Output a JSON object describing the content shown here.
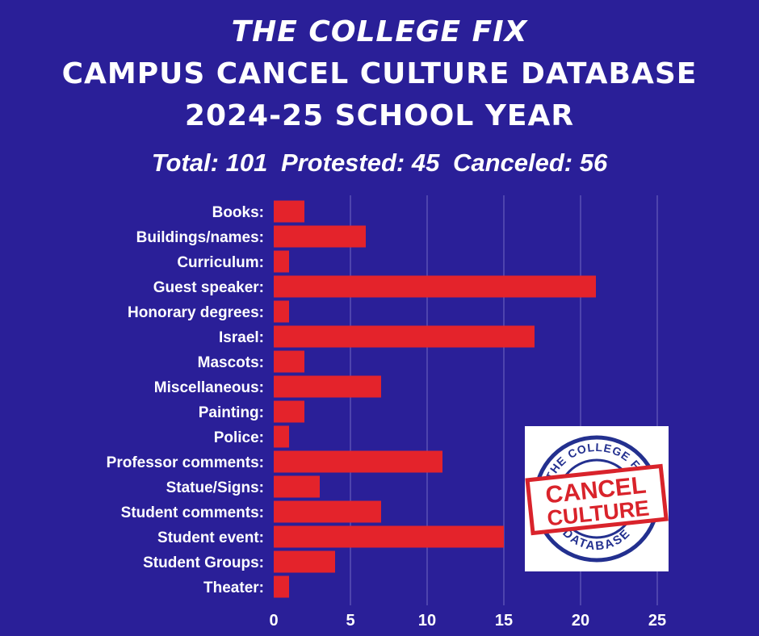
{
  "header": {
    "line1": "THE COLLEGE FIX",
    "line2": "CAMPUS CANCEL CULTURE DATABASE",
    "line3": "2024-25 SCHOOL YEAR"
  },
  "stats": {
    "total": "Total: 101",
    "protested": "Protested: 45",
    "canceled": "Canceled: 56"
  },
  "logo": {
    "arc_top": "THE COLLEGE FIX",
    "stamp_line1": "CANCEL",
    "stamp_line2": "CULTURE",
    "arc_bottom": "DATABASE"
  },
  "colors": {
    "background": "#2a1f98",
    "bar": "#e4232b",
    "grid": "#5a50b4",
    "logo_blue": "#23308f",
    "logo_red": "#d9232b"
  },
  "chart_data": {
    "type": "bar",
    "orientation": "horizontal",
    "categories": [
      "Books:",
      "Buildings/names:",
      "Curriculum:",
      "Guest speaker:",
      "Honorary degrees:",
      "Israel:",
      "Mascots:",
      "Miscellaneous:",
      "Painting:",
      "Police:",
      "Professor comments:",
      "Statue/Signs:",
      "Student comments:",
      "Student event:",
      "Student Groups:",
      "Theater:"
    ],
    "values": [
      2,
      6,
      1,
      21,
      1,
      17,
      2,
      7,
      2,
      1,
      11,
      3,
      7,
      15,
      4,
      1
    ],
    "xlim": [
      0,
      25
    ],
    "xticks": [
      0,
      5,
      10,
      15,
      20,
      25
    ],
    "grid": true,
    "xlabel": "",
    "ylabel": ""
  }
}
